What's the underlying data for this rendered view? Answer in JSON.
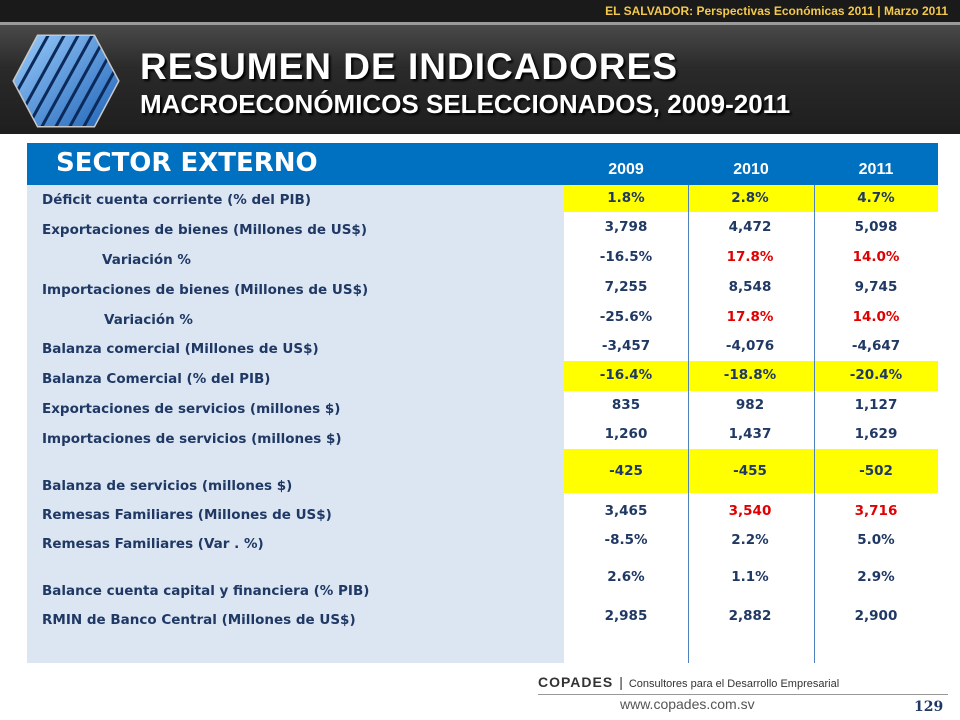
{
  "header": {
    "top_caption": "EL SALVADOR: Perspectivas Económicas 2011 | Marzo 2011",
    "title": "RESUMEN DE INDICADORES",
    "subtitle": "MACROECONÓMICOS SELECCIONADOS, 2009-2011",
    "logo_icon": "hexagon-stripes-logo"
  },
  "table": {
    "section_title": "SECTOR EXTERNO",
    "years": [
      "2009",
      "2010",
      "2011"
    ],
    "highlight_color": "#ffff00",
    "header_color": "#0070c0",
    "negative_accent_color": "#e00000",
    "rows": [
      {
        "label": "Déficit cuenta corriente (% del PIB)",
        "values": [
          "1.8%",
          "2.8%",
          "4.7%"
        ]
      },
      {
        "label": "Exportaciones de bienes (Millones de US$)",
        "values": [
          "3,798",
          "4,472",
          "5,098"
        ]
      },
      {
        "label": "Variación %",
        "values": [
          "-16.5%",
          "17.8%",
          "14.0%"
        ]
      },
      {
        "label": "Importaciones de bienes (Millones de US$)",
        "values": [
          "7,255",
          "8,548",
          "9,745"
        ]
      },
      {
        "label": "Variación %",
        "values": [
          "-25.6%",
          "17.8%",
          "14.0%"
        ]
      },
      {
        "label": "Balanza comercial (Millones de US$)",
        "values": [
          "-3,457",
          "-4,076",
          "-4,647"
        ]
      },
      {
        "label": "Balanza Comercial (% del PIB)",
        "values": [
          "-16.4%",
          "-18.8%",
          "-20.4%"
        ]
      },
      {
        "label": "Exportaciones de servicios (millones $)",
        "values": [
          "835",
          "982",
          "1,127"
        ]
      },
      {
        "label": "Importaciones de servicios (millones $)",
        "values": [
          "1,260",
          "1,437",
          "1,629"
        ]
      },
      {
        "label": "Balanza de servicios (millones $)",
        "values": [
          "-425",
          "-455",
          "-502"
        ]
      },
      {
        "label": "Remesas Familiares (Millones de US$)",
        "values": [
          "3,465",
          "3,540",
          "3,716"
        ]
      },
      {
        "label": "Remesas Familiares (Var . %)",
        "values": [
          "-8.5%",
          "2.2%",
          "5.0%"
        ]
      },
      {
        "label": "Balance cuenta capital y financiera (% PIB)",
        "values": [
          "2.6%",
          "1.1%",
          "2.9%"
        ]
      },
      {
        "label": "RMIN de Banco Central (Millones de US$)",
        "values": [
          "2,985",
          "2,882",
          "2,900"
        ]
      }
    ]
  },
  "footer": {
    "brand": "COPADES",
    "separator": "|",
    "tagline": "Consultores para el Desarrollo Empresarial",
    "url": "www.copades.com.sv",
    "page_number": "129"
  }
}
